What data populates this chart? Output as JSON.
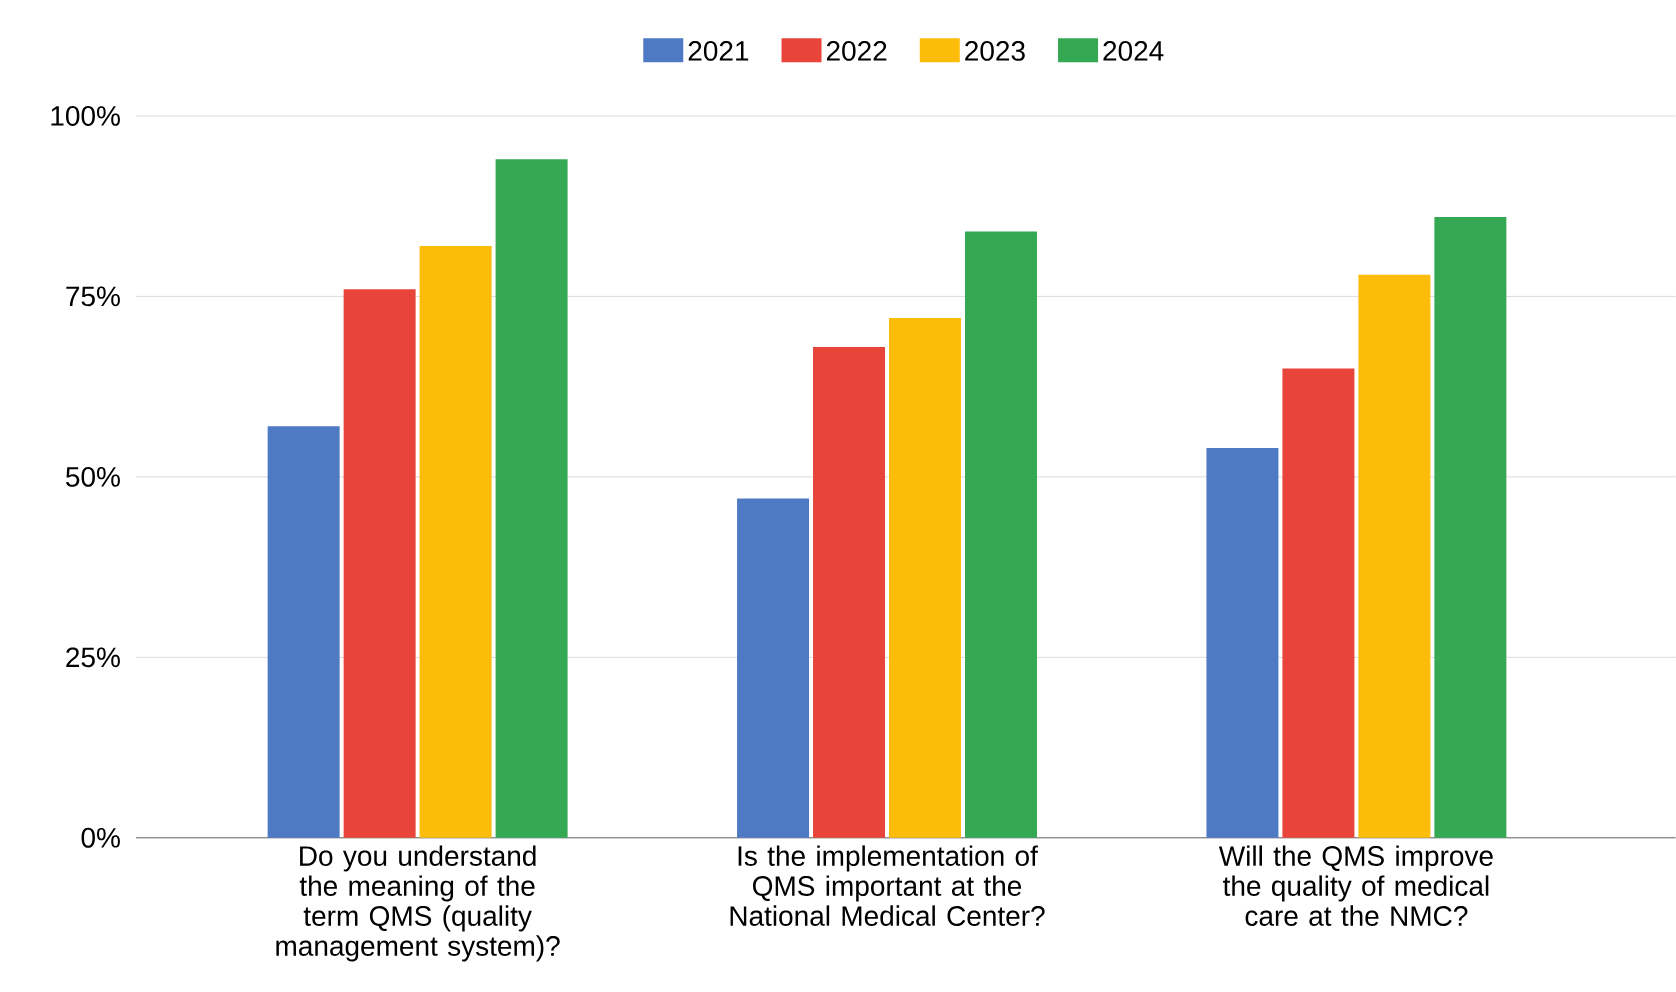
{
  "chart_data": {
    "type": "bar",
    "categories": [
      "Do you understand the meaning of the term QMS (quality management system)?",
      "Is the implementation of QMS important at the National Medical Center?",
      "Will the QMS improve the quality of medical care at the NMC?"
    ],
    "series": [
      {
        "name": "2021",
        "color": "#4e7ac4",
        "values": [
          57,
          47,
          54
        ]
      },
      {
        "name": "2022",
        "color": "#e8443a",
        "values": [
          76,
          68,
          65
        ]
      },
      {
        "name": "2023",
        "color": "#fbbc0a",
        "values": [
          82,
          72,
          78
        ]
      },
      {
        "name": "2024",
        "color": "#34a853",
        "values": [
          94,
          84,
          86
        ]
      }
    ],
    "ylim": [
      0,
      100
    ],
    "yticks": [
      {
        "value": 0,
        "label": "0%"
      },
      {
        "value": 25,
        "label": "25%"
      },
      {
        "value": 50,
        "label": "50%"
      },
      {
        "value": 75,
        "label": "75%"
      },
      {
        "value": 100,
        "label": "100%"
      }
    ],
    "grid": "y",
    "legend": "top"
  }
}
